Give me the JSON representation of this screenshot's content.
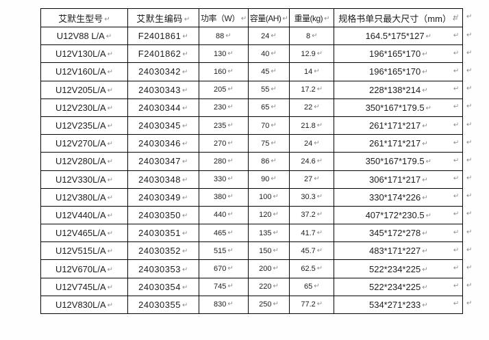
{
  "document": {
    "formatting_mark": "↵",
    "colors": {
      "border": "#000000",
      "text": "#1c1c1c",
      "mark_gray": "#8a8a8a",
      "background": "#ffffff"
    },
    "table": {
      "headers": [
        {
          "key": "model",
          "label": "艾默生型号"
        },
        {
          "key": "code",
          "label": "艾默生编码"
        },
        {
          "key": "power",
          "label": "功率（W）"
        },
        {
          "key": "capacity",
          "label": "容量(AH)"
        },
        {
          "key": "weight",
          "label": "重量(kg)"
        },
        {
          "key": "dims",
          "label": "规格书单只最大尺寸（mm）"
        }
      ],
      "rows": [
        [
          "U12V88 L/A",
          "F2401861",
          "88",
          "24",
          "8",
          "164.5*175*127"
        ],
        [
          "U12V130L/A",
          "F2401862",
          "130",
          "40",
          "12.9",
          "196*165*170"
        ],
        [
          "U12V160L/A",
          "24030342",
          "160",
          "45",
          "14",
          "196*165*170"
        ],
        [
          "U12V205L/A",
          "24030343",
          "205",
          "55",
          "17.2",
          "228*138*214"
        ],
        [
          "U12V230L/A",
          "24030344",
          "230",
          "65",
          "22",
          "350*167*179.5"
        ],
        [
          "U12V235L/A",
          "24030345",
          "235",
          "70",
          "21.8",
          "261*171*217"
        ],
        [
          "U12V270L/A",
          "24030346",
          "270",
          "75",
          "24",
          "261*171*217"
        ],
        [
          "U12V280L/A",
          "24030347",
          "280",
          "86",
          "24.6",
          "350*167*179.5"
        ],
        [
          "U12V330L/A",
          "24030348",
          "330",
          "90",
          "27",
          "306*171*217"
        ],
        [
          "U12V380L/A",
          "24030349",
          "380",
          "100",
          "30.3",
          "330*174*226"
        ],
        [
          "U12V440L/A",
          "24030350",
          "440",
          "120",
          "37.2",
          "407*172*230.5"
        ],
        [
          "U12V465L/A",
          "24030351",
          "465",
          "135",
          "41.7",
          "345*172*278"
        ],
        [
          "U12V515L/A",
          "24030352",
          "515",
          "150",
          "45.7",
          "483*171*227"
        ],
        [
          "U12V670L/A",
          "24030353",
          "670",
          "200",
          "62.5",
          "522*234*225"
        ],
        [
          "U12V745L/A",
          "24030354",
          "745",
          "220",
          "65",
          "522*234*225"
        ],
        [
          "U12V830L/A",
          "24030355",
          "830",
          "250",
          "77.2",
          "534*271*233"
        ]
      ]
    }
  }
}
